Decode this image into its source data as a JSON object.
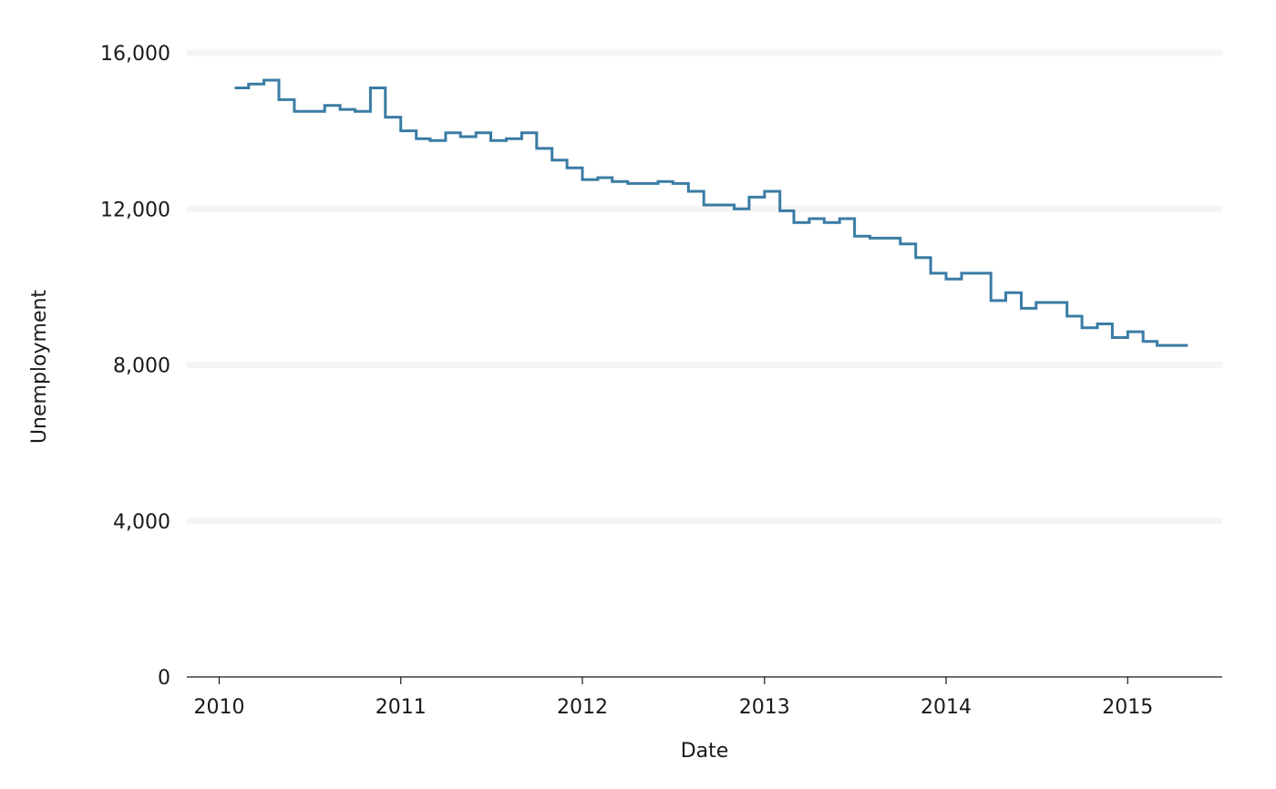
{
  "chart_data": {
    "type": "line",
    "step": true,
    "title": "",
    "xlabel": "Date",
    "ylabel": "Unemployment",
    "xlim": [
      "2009-10-28",
      "2015-07-10"
    ],
    "ylim": [
      0,
      16000
    ],
    "grid": {
      "horizontal": true,
      "vertical": false
    },
    "x_ticks": [
      {
        "value": "2010-01-01",
        "label": "2010"
      },
      {
        "value": "2011-01-01",
        "label": "2011"
      },
      {
        "value": "2012-01-01",
        "label": "2012"
      },
      {
        "value": "2013-01-01",
        "label": "2013"
      },
      {
        "value": "2014-01-01",
        "label": "2014"
      },
      {
        "value": "2015-01-01",
        "label": "2015"
      }
    ],
    "y_ticks": [
      {
        "value": 0,
        "label": "0"
      },
      {
        "value": 4000,
        "label": "4,000"
      },
      {
        "value": 8000,
        "label": "8,000"
      },
      {
        "value": 12000,
        "label": "12,000"
      },
      {
        "value": 16000,
        "label": "16,000"
      }
    ],
    "colors": {
      "line": "#3a7ca5",
      "grid": "#f5f5f5",
      "axis": "#1a1a1a"
    },
    "series": [
      {
        "x": [
          "2010-02-01",
          "2010-03-01",
          "2010-04-01",
          "2010-05-01",
          "2010-06-01",
          "2010-07-01",
          "2010-08-01",
          "2010-09-01",
          "2010-10-01",
          "2010-11-01",
          "2010-12-01",
          "2011-01-01",
          "2011-02-01",
          "2011-03-01",
          "2011-04-01",
          "2011-05-01",
          "2011-06-01",
          "2011-07-01",
          "2011-08-01",
          "2011-09-01",
          "2011-10-01",
          "2011-11-01",
          "2011-12-01",
          "2012-01-01",
          "2012-02-01",
          "2012-03-01",
          "2012-04-01",
          "2012-05-01",
          "2012-06-01",
          "2012-07-01",
          "2012-08-01",
          "2012-09-01",
          "2012-10-01",
          "2012-11-01",
          "2012-12-01",
          "2013-01-01",
          "2013-02-01",
          "2013-03-01",
          "2013-04-01",
          "2013-05-01",
          "2013-06-01",
          "2013-07-01",
          "2013-08-01",
          "2013-09-01",
          "2013-10-01",
          "2013-11-01",
          "2013-12-01",
          "2014-01-01",
          "2014-02-01",
          "2014-03-01",
          "2014-04-01",
          "2014-05-01",
          "2014-06-01",
          "2014-07-01",
          "2014-08-01",
          "2014-09-01",
          "2014-10-01",
          "2014-11-01",
          "2014-12-01",
          "2015-01-01",
          "2015-02-01",
          "2015-03-01",
          "2015-04-01"
        ],
        "values": [
          15100,
          15200,
          15300,
          14800,
          14500,
          14500,
          14650,
          14550,
          14500,
          15100,
          14350,
          14000,
          13800,
          13750,
          13950,
          13850,
          13950,
          13750,
          13800,
          13950,
          13550,
          13250,
          13050,
          12750,
          12800,
          12700,
          12650,
          12650,
          12700,
          12650,
          12450,
          12100,
          12100,
          12000,
          12300,
          12450,
          11950,
          11650,
          11750,
          11650,
          11750,
          11300,
          11250,
          11250,
          11100,
          10750,
          10350,
          10200,
          10350,
          10350,
          9650,
          9850,
          9450,
          9600,
          9600,
          9250,
          8950,
          9050,
          8700,
          8850,
          8600,
          8500,
          8500
        ]
      }
    ]
  }
}
